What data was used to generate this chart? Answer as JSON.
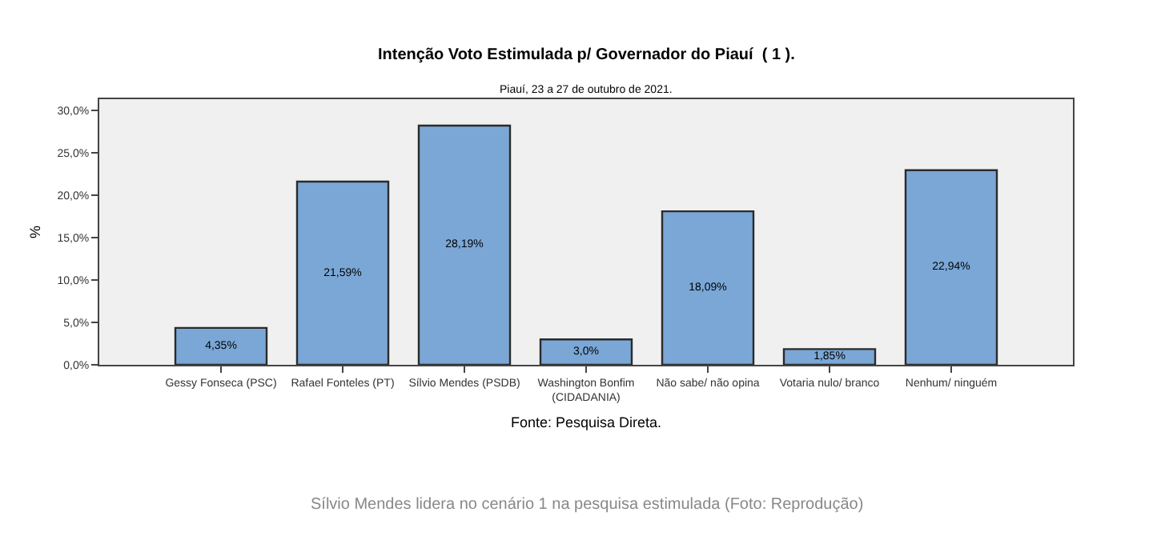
{
  "chart_data": {
    "type": "bar",
    "title": "Intenção Voto Estimulada p/ Governador do Piauí  ( 1 ).",
    "subtitle": "Piauí, 23 a 27 de outubro de 2021.",
    "ylabel": "%",
    "categories": [
      "Gessy Fonseca (PSC)",
      "Rafael Fonteles (PT)",
      "Sílvio Mendes (PSDB)",
      "Washington Bonfim (CIDADANIA)",
      "Não sabe/ não opina",
      "Votaria nulo/ branco",
      "Nenhum/ ninguém"
    ],
    "values": [
      4.35,
      21.59,
      28.19,
      3.0,
      18.09,
      1.85,
      22.94
    ],
    "value_labels": [
      "4,35%",
      "21,59%",
      "28,19%",
      "3,0%",
      "18,09%",
      "1,85%",
      "22,94%"
    ],
    "color": "#7aa7d6",
    "ylim": [
      0,
      31.3
    ],
    "yticks": [
      {
        "value": 0,
        "label": "0,0%"
      },
      {
        "value": 5,
        "label": "5,0%"
      },
      {
        "value": 10,
        "label": "10,0%"
      },
      {
        "value": 15,
        "label": "15,0%"
      },
      {
        "value": 20,
        "label": "20,0%"
      },
      {
        "value": 25,
        "label": "25,0%"
      },
      {
        "value": 30,
        "label": "30,0%"
      }
    ],
    "annotations": [
      "Fonte: Pesquisa Direta.",
      "Sílvio Mendes lidera no cenário 1 na pesquisa estimulada (Foto: Reprodução)"
    ]
  }
}
